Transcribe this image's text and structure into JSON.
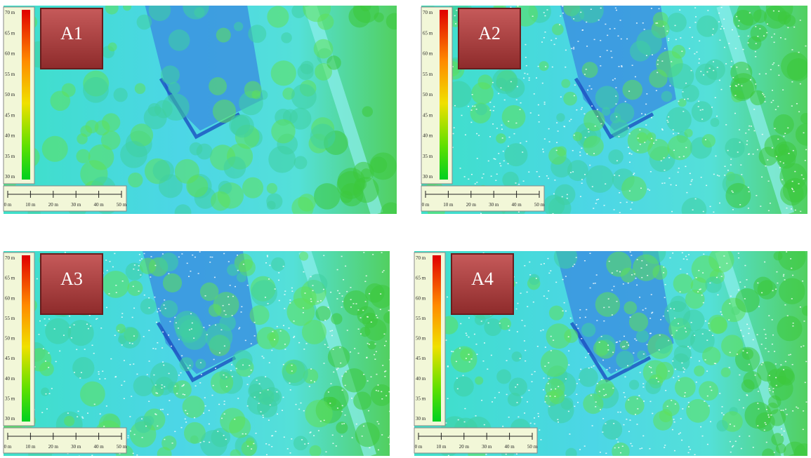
{
  "panels": [
    {
      "label": "A1",
      "legend_ticks": [
        "70 m",
        "65 m",
        "60 m",
        "55 m",
        "50 m",
        "45 m",
        "40 m",
        "35 m",
        "30 m"
      ],
      "scale_ticks": [
        "0 m",
        "10 m",
        "20 m",
        "30 m",
        "40 m",
        "50 m"
      ]
    },
    {
      "label": "A2",
      "legend_ticks": [
        "70 m",
        "65 m",
        "60 m",
        "55 m",
        "50 m",
        "45 m",
        "40 m",
        "35 m",
        "30 m"
      ],
      "scale_ticks": [
        "0 m",
        "10 m",
        "20 m",
        "30 m",
        "40 m",
        "50 m"
      ]
    },
    {
      "label": "A3",
      "legend_ticks": [
        "70 m",
        "65 m",
        "60 m",
        "55 m",
        "50 m",
        "45 m",
        "40 m",
        "35 m",
        "30 m"
      ],
      "scale_ticks": [
        "0 m",
        "10 m",
        "20 m",
        "30 m",
        "40 m",
        "50 m"
      ]
    },
    {
      "label": "A4",
      "legend_ticks": [
        "70 m",
        "65 m",
        "60 m",
        "55 m",
        "50 m",
        "45 m",
        "40 m",
        "35 m",
        "30 m"
      ],
      "scale_ticks": [
        "0 m",
        "10 m",
        "20 m",
        "30 m",
        "40 m",
        "50 m"
      ]
    }
  ]
}
